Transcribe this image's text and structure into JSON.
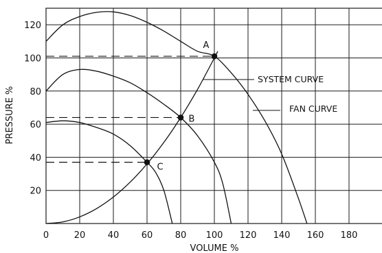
{
  "chart_data": {
    "type": "line",
    "xlabel": "VOLUME %",
    "ylabel": "PRESSURE %",
    "xlim": [
      0,
      200
    ],
    "ylim": [
      0,
      130
    ],
    "xticks": [
      0,
      20,
      40,
      60,
      80,
      100,
      120,
      140,
      160,
      180
    ],
    "yticks": [
      20,
      40,
      60,
      80,
      100,
      120
    ],
    "grid": true,
    "series": [
      {
        "name": "FAN CURVE",
        "x": [
          0,
          10,
          20,
          30,
          40,
          50,
          60,
          70,
          80,
          90,
          100,
          110,
          120,
          130,
          140,
          150,
          155
        ],
        "y": [
          110,
          120,
          125,
          127.5,
          127.8,
          125.6,
          121.5,
          116.2,
          110,
          104,
          101,
          91,
          78,
          62,
          42,
          15,
          0
        ]
      },
      {
        "name": "SYSTEM CURVE",
        "x": [
          0,
          10,
          20,
          30,
          40,
          50,
          60,
          70,
          80,
          90,
          100,
          102
        ],
        "y": [
          0,
          1,
          4,
          9,
          16,
          25,
          36,
          49,
          64,
          81,
          100,
          104
        ]
      },
      {
        "x": [
          0,
          10,
          20,
          30,
          40,
          50,
          60,
          70,
          80,
          90,
          100,
          105,
          110
        ],
        "y": [
          80,
          90,
          93,
          92,
          89,
          85,
          79,
          72,
          64,
          53,
          37,
          24,
          0
        ]
      },
      {
        "x": [
          0,
          10,
          20,
          30,
          40,
          50,
          60,
          65,
          70,
          75
        ],
        "y": [
          61,
          62,
          61,
          58,
          54,
          47,
          37,
          31,
          20,
          0
        ]
      }
    ],
    "points": [
      {
        "label": "A",
        "x": 100,
        "y": 101
      },
      {
        "label": "B",
        "x": 80,
        "y": 64
      },
      {
        "label": "C",
        "x": 60,
        "y": 37
      }
    ],
    "annotations": [
      "SYSTEM CURVE",
      "FAN CURVE"
    ]
  }
}
